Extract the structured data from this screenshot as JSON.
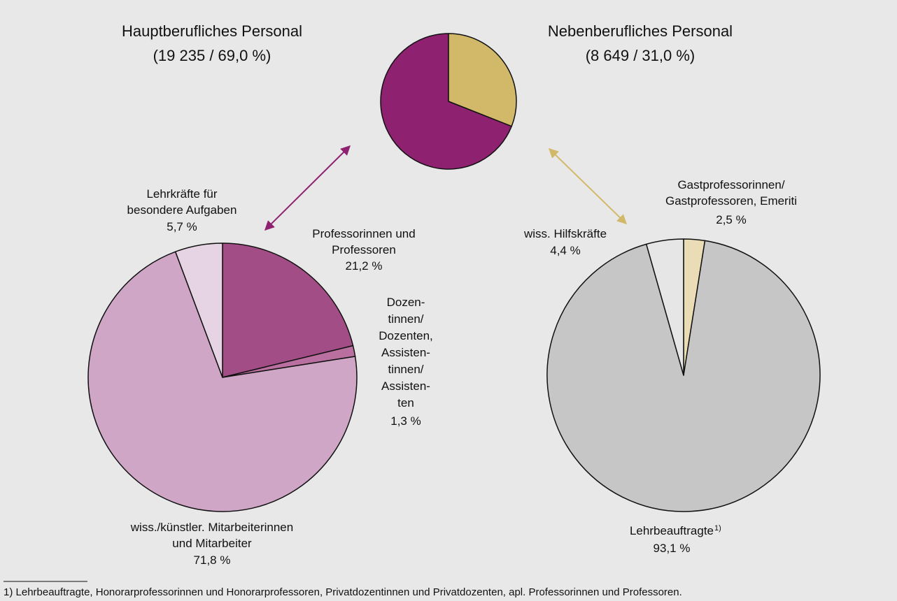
{
  "chart_data": [
    {
      "type": "pie",
      "categories": [
        "Hauptberufliches Personal",
        "Nebenberufliches Personal"
      ],
      "values": [
        69.0,
        31.0
      ],
      "value_labels": [
        "(19 235 / 69,0 %)",
        "(8 649 / 31,0 %)"
      ],
      "colors": [
        "#8e2170",
        "#d2b96a"
      ]
    },
    {
      "type": "pie",
      "categories": [
        "Professorinnen und\nProfessoren",
        "Dozen-\ntinnen/\nDozenten,\nAssisten-\ntinnen/\nAssisten-\nten",
        "wiss./künstler. Mitarbeiterinnen\nund Mitarbeiter",
        "Lehrkräfte für\nbesondere Aufgaben"
      ],
      "values": [
        21.2,
        1.3,
        71.8,
        5.7
      ],
      "value_labels": [
        "21,2 %",
        "1,3 %",
        "71,8 %",
        "5,7 %"
      ],
      "colors": [
        "#a34d86",
        "#b96fa0",
        "#cfa6c6",
        "#e6d3e3"
      ]
    },
    {
      "type": "pie",
      "categories": [
        "Gastprofessorinnen/\nGastprofessoren, Emeriti",
        "Lehrbeauftragte",
        "wiss. Hilfskräfte"
      ],
      "values": [
        2.5,
        93.1,
        4.4
      ],
      "value_labels": [
        "2,5 %",
        "93,1 %",
        "4,4 %"
      ],
      "colors": [
        "#eadcb4",
        "#c6c6c6",
        "#e6e6e6"
      ]
    }
  ],
  "footnote_marker": "1)",
  "footnote": "1) Lehrbeauftragte, Honorarprofessorinnen und Honorarprofessoren, Privatdozentinnen und Privatdozenten, apl. Professorinnen und Professoren."
}
